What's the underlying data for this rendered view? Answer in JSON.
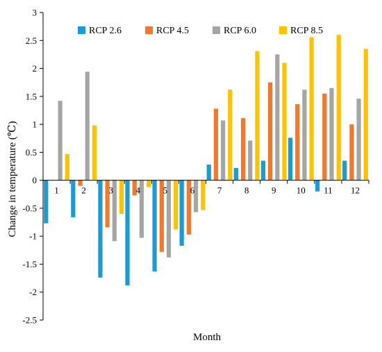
{
  "chart_data": {
    "type": "bar",
    "title": "",
    "xlabel": "Month",
    "ylabel": "Change in temperature (℃)",
    "categories": [
      "1",
      "2",
      "3",
      "4",
      "5",
      "6",
      "7",
      "8",
      "9",
      "10",
      "11",
      "12"
    ],
    "ylim": [
      -2.5,
      3
    ],
    "yticks": [
      "3",
      "2.5",
      "2",
      "1.5",
      "1",
      "0.5",
      "0",
      "-0.5",
      "-1",
      "-1.5",
      "-2",
      "-2.5"
    ],
    "grid": false,
    "legend": "top",
    "series": [
      {
        "name": "RCP 2.6",
        "color": "#1a9ad6",
        "values": [
          -0.77,
          -0.66,
          -1.74,
          -1.88,
          -1.63,
          -1.17,
          0.28,
          0.22,
          0.35,
          0.76,
          -0.2,
          0.35
        ]
      },
      {
        "name": "RCP 4.5",
        "color": "#f4772a",
        "values": [
          0.0,
          -0.1,
          -0.84,
          -0.27,
          -1.28,
          -0.97,
          1.28,
          1.11,
          1.75,
          1.36,
          1.55,
          1.0
        ]
      },
      {
        "name": "RCP 6.0",
        "color": "#a5a5a5",
        "values": [
          1.42,
          1.94,
          -1.09,
          -1.03,
          -1.38,
          -0.57,
          1.07,
          0.71,
          2.25,
          1.62,
          1.65,
          1.46
        ]
      },
      {
        "name": "RCP 8.5",
        "color": "#fdc300",
        "values": [
          0.47,
          0.98,
          -0.6,
          -0.12,
          -0.88,
          -0.53,
          1.62,
          2.31,
          2.1,
          2.56,
          2.6,
          2.35
        ]
      }
    ]
  }
}
